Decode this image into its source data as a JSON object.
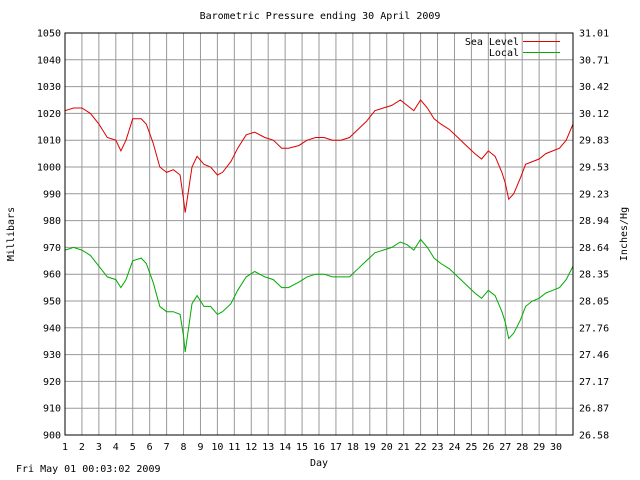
{
  "timestamp": "Fri May 01 00:03:02 2009",
  "chart_data": {
    "type": "line",
    "title": "Barometric Pressure ending 30 April 2009",
    "xlabel": "Day",
    "ylabel": "Millibars",
    "y2label": "Inches/Hg",
    "xlim": [
      1,
      31
    ],
    "ylim": [
      900,
      1050
    ],
    "x_ticks": [
      "1",
      "2",
      "3",
      "4",
      "5",
      "6",
      "7",
      "8",
      "9",
      "10",
      "11",
      "12",
      "13",
      "14",
      "15",
      "16",
      "17",
      "18",
      "19",
      "20",
      "21",
      "22",
      "23",
      "24",
      "25",
      "26",
      "27",
      "28",
      "29",
      "30"
    ],
    "y_ticks": [
      900,
      910,
      920,
      930,
      940,
      950,
      960,
      970,
      980,
      990,
      1000,
      1010,
      1020,
      1030,
      1040,
      1050
    ],
    "y2_ticks": [
      "26.58",
      "26.87",
      "27.17",
      "27.46",
      "27.76",
      "28.05",
      "28.35",
      "28.64",
      "28.94",
      "29.23",
      "29.53",
      "29.83",
      "30.12",
      "30.42",
      "30.71",
      "31.01"
    ],
    "grid": true,
    "legend_position": "top-right",
    "colors": {
      "sea_level": "#dd0000",
      "local": "#00aa00",
      "grid": "#999999",
      "axes": "#000000"
    },
    "x": [
      1.0,
      1.5,
      2.0,
      2.5,
      3.0,
      3.5,
      4.0,
      4.3,
      4.6,
      5.0,
      5.5,
      5.8,
      6.2,
      6.6,
      7.0,
      7.4,
      7.8,
      8.0,
      8.1,
      8.5,
      8.8,
      9.2,
      9.6,
      10.0,
      10.3,
      10.8,
      11.2,
      11.7,
      12.2,
      12.8,
      13.3,
      13.8,
      14.2,
      14.8,
      15.3,
      15.8,
      16.3,
      16.8,
      17.3,
      17.8,
      18.3,
      18.8,
      19.3,
      19.8,
      20.3,
      20.8,
      21.2,
      21.6,
      22.0,
      22.4,
      22.8,
      23.2,
      23.7,
      24.2,
      24.7,
      25.2,
      25.6,
      26.0,
      26.4,
      26.8,
      27.0,
      27.2,
      27.5,
      27.9,
      28.2,
      28.6,
      29.0,
      29.4,
      29.8,
      30.2,
      30.6,
      31.0
    ],
    "series": [
      {
        "name": "Sea Level",
        "values": [
          1021,
          1022,
          1022,
          1020,
          1016,
          1011,
          1010,
          1006,
          1010,
          1018,
          1018,
          1016,
          1009,
          1000,
          998,
          999,
          997,
          988,
          983,
          1000,
          1004,
          1001,
          1000,
          997,
          998,
          1002,
          1007,
          1012,
          1013,
          1011,
          1010,
          1007,
          1007,
          1008,
          1010,
          1011,
          1011,
          1010,
          1010,
          1011,
          1014,
          1017,
          1021,
          1022,
          1023,
          1025,
          1023,
          1021,
          1025,
          1022,
          1018,
          1016,
          1014,
          1011,
          1008,
          1005,
          1003,
          1006,
          1004,
          998,
          994,
          988,
          990,
          996,
          1001,
          1002,
          1003,
          1005,
          1006,
          1007,
          1010,
          1016
        ]
      },
      {
        "name": "Local",
        "values": [
          969,
          970,
          969,
          967,
          963,
          959,
          958,
          955,
          958,
          965,
          966,
          964,
          957,
          948,
          946,
          946,
          945,
          937,
          931,
          949,
          952,
          948,
          948,
          945,
          946,
          949,
          954,
          959,
          961,
          959,
          958,
          955,
          955,
          957,
          959,
          960,
          960,
          959,
          959,
          959,
          962,
          965,
          968,
          969,
          970,
          972,
          971,
          969,
          973,
          970,
          966,
          964,
          962,
          959,
          956,
          953,
          951,
          954,
          952,
          946,
          942,
          936,
          938,
          943,
          948,
          950,
          951,
          953,
          954,
          955,
          958,
          963
        ]
      }
    ]
  }
}
